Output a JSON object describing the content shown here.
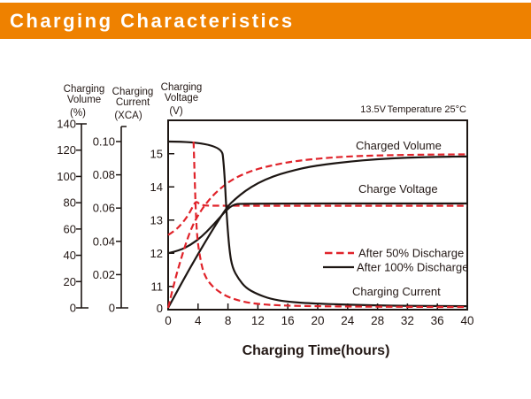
{
  "header": {
    "title": "Charging Characteristics",
    "banner_color": "#ee8100",
    "title_color": "#ffffff"
  },
  "condition": {
    "voltage_setpoint": "13.5V",
    "temperature": "Temperature 25°C"
  },
  "chart_data": {
    "type": "line",
    "x_axis": {
      "label": "Charging Time(hours)",
      "range": [
        0,
        40
      ],
      "ticks": [
        {
          "v": 0,
          "label": "0"
        },
        {
          "v": 4,
          "label": "4"
        },
        {
          "v": 8,
          "label": "8"
        },
        {
          "v": 12,
          "label": "12"
        },
        {
          "v": 16,
          "label": "16"
        },
        {
          "v": 20,
          "label": "20"
        },
        {
          "v": 24,
          "label": "24"
        },
        {
          "v": 28,
          "label": "28"
        },
        {
          "v": 32,
          "label": "32"
        },
        {
          "v": 36,
          "label": "36"
        },
        {
          "v": 40,
          "label": "40"
        }
      ]
    },
    "y_axes": [
      {
        "id": "volume",
        "label_lines": [
          "Charging",
          "Volume"
        ],
        "unit": "(%)",
        "range": [
          0,
          140
        ],
        "ticks": [
          {
            "v": 140,
            "label": "140"
          },
          {
            "v": 120,
            "label": "120"
          },
          {
            "v": 100,
            "label": "100"
          },
          {
            "v": 80,
            "label": "80"
          },
          {
            "v": 60,
            "label": "60"
          },
          {
            "v": 40,
            "label": "40"
          },
          {
            "v": 20,
            "label": "20"
          },
          {
            "v": 0,
            "label": "0"
          }
        ]
      },
      {
        "id": "current",
        "label_lines": [
          "Charging",
          "Current"
        ],
        "unit": "(XCA)",
        "range": [
          0,
          0.11
        ],
        "ticks": [
          {
            "v": 0.1,
            "label": "0.10"
          },
          {
            "v": 0.08,
            "label": "0.08"
          },
          {
            "v": 0.06,
            "label": "0.06"
          },
          {
            "v": 0.04,
            "label": "0.04"
          },
          {
            "v": 0.02,
            "label": "0.02"
          },
          {
            "v": 0,
            "label": "0"
          }
        ]
      },
      {
        "id": "voltage",
        "label_lines": [
          "Charging",
          "Voltage"
        ],
        "unit": "(V)",
        "range": [
          11,
          15.6
        ],
        "zero_label": "0",
        "ticks": [
          {
            "v": 15,
            "label": "15"
          },
          {
            "v": 14,
            "label": "14"
          },
          {
            "v": 13,
            "label": "13"
          },
          {
            "v": 12,
            "label": "12"
          },
          {
            "v": 11,
            "label": "11"
          }
        ]
      }
    ],
    "annotations": [
      "Charged Volume",
      "Charge Voltage",
      "Charging Current"
    ],
    "legend": [
      {
        "label": "After 50% Discharge",
        "style": "dashed",
        "color": "#e0232a"
      },
      {
        "label": "After 100% Discharge",
        "style": "solid",
        "color": "#1d1613"
      }
    ],
    "series": [
      {
        "name": "charge-voltage-50",
        "axis": "voltage",
        "style": "dashed",
        "color": "#e0232a",
        "points": [
          [
            0,
            12.55
          ],
          [
            0.9,
            12.68
          ],
          [
            1.8,
            12.88
          ],
          [
            2.6,
            13.12
          ],
          [
            3.1,
            13.32
          ],
          [
            3.5,
            13.5
          ],
          [
            3.8,
            13.56
          ],
          [
            4.2,
            13.48
          ],
          [
            4.8,
            13.44
          ],
          [
            6,
            13.43
          ],
          [
            40,
            13.43
          ]
        ]
      },
      {
        "name": "charge-voltage-100",
        "axis": "voltage",
        "style": "solid",
        "color": "#1d1613",
        "points": [
          [
            0,
            12.0
          ],
          [
            1.5,
            12.08
          ],
          [
            3,
            12.25
          ],
          [
            4.5,
            12.5
          ],
          [
            5.8,
            12.8
          ],
          [
            6.8,
            13.05
          ],
          [
            7.6,
            13.25
          ],
          [
            8.3,
            13.4
          ],
          [
            8.9,
            13.47
          ],
          [
            9.6,
            13.5
          ],
          [
            40,
            13.5
          ]
        ]
      },
      {
        "name": "charged-volume-100",
        "axis": "volume",
        "style": "solid",
        "color": "#1d1613",
        "points": [
          [
            0,
            0
          ],
          [
            2,
            21
          ],
          [
            4,
            41
          ],
          [
            6,
            60
          ],
          [
            7.9,
            77
          ],
          [
            9,
            83
          ],
          [
            10.3,
            89
          ],
          [
            12,
            95
          ],
          [
            14,
            100
          ],
          [
            16,
            103.5
          ],
          [
            18,
            106.3
          ],
          [
            20,
            108.4
          ],
          [
            24,
            111.2
          ],
          [
            28,
            113.2
          ],
          [
            32,
            114.3
          ],
          [
            36,
            114.9
          ],
          [
            40,
            115.2
          ]
        ]
      },
      {
        "name": "charged-volume-50",
        "axis": "volume",
        "style": "dashed",
        "color": "#e0232a",
        "points": [
          [
            0,
            0
          ],
          [
            0.8,
            19
          ],
          [
            1.7,
            37
          ],
          [
            2.6,
            53
          ],
          [
            3.3,
            63
          ],
          [
            4,
            70.5
          ],
          [
            5,
            79
          ],
          [
            6.3,
            87.5
          ],
          [
            8,
            95.5
          ],
          [
            9.5,
            100.5
          ],
          [
            12,
            106
          ],
          [
            16,
            111
          ],
          [
            20,
            113.6
          ],
          [
            24,
            115.2
          ],
          [
            28,
            116
          ],
          [
            34,
            116.6
          ],
          [
            40,
            116.8
          ]
        ]
      },
      {
        "name": "charging-current-100",
        "axis": "current",
        "style": "solid",
        "color": "#1d1613",
        "points": [
          [
            0,
            0.1
          ],
          [
            7.1,
            0.1
          ],
          [
            7.5,
            0.084
          ],
          [
            7.8,
            0.057
          ],
          [
            8.2,
            0.034
          ],
          [
            8.6,
            0.024
          ],
          [
            9.4,
            0.0175
          ],
          [
            10.4,
            0.012
          ],
          [
            11.8,
            0.0085
          ],
          [
            13.7,
            0.0053
          ],
          [
            16,
            0.0037
          ],
          [
            19,
            0.0027
          ],
          [
            24,
            0.0019
          ],
          [
            30,
            0.0013
          ],
          [
            35,
            0.0011
          ],
          [
            40,
            0.001
          ]
        ]
      },
      {
        "name": "charging-current-50",
        "axis": "current",
        "style": "dashed",
        "color": "#e0232a",
        "points": [
          [
            3.4,
            0.1
          ],
          [
            3.55,
            0.078
          ],
          [
            3.7,
            0.057
          ],
          [
            3.9,
            0.041
          ],
          [
            4.3,
            0.0295
          ],
          [
            4.7,
            0.0215
          ],
          [
            5.4,
            0.0155
          ],
          [
            6.4,
            0.011
          ],
          [
            7.6,
            0.0074
          ],
          [
            9.1,
            0.0048
          ],
          [
            11,
            0.0028
          ],
          [
            14,
            0.0016
          ],
          [
            18,
            0.0011
          ],
          [
            24,
            0.0008
          ],
          [
            32,
            0.0006
          ],
          [
            40,
            0.0005
          ]
        ]
      }
    ]
  }
}
